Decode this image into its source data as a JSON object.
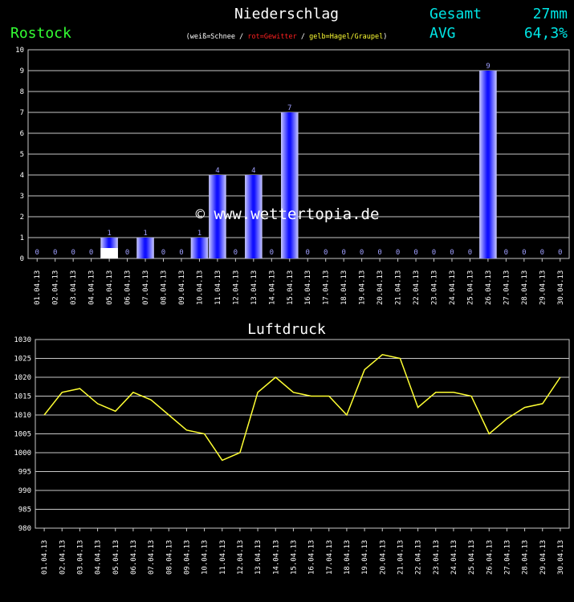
{
  "header": {
    "title": "Niederschlag",
    "location": "Rostock",
    "gesamt_label": "Gesamt",
    "gesamt_value": "27mm",
    "avg_label": "AVG",
    "avg_value": "64,3%",
    "legend": {
      "open": "(",
      "snow": "weiß=Schnee",
      "sep1": " / ",
      "thunder": "rot=Gewitter",
      "sep2": " / ",
      "hail": "gelb=Hagel/Graupel",
      "close": ")"
    },
    "watermark": "© www.wettertopia.de"
  },
  "colors": {
    "title": "#ffffff",
    "location": "#33ff33",
    "stats": "#00e5e5",
    "bar": "#2222ff",
    "snow": "#ffffff",
    "thunder": "#ff2020",
    "hail": "#ffff33",
    "line": "#ffff33",
    "grid": "#c8c8c8",
    "tick_label": "#ffffff",
    "value_label": "#a0a0ff"
  },
  "chart_data": [
    {
      "type": "bar",
      "title": "Niederschlag",
      "categories": [
        "01.04.13",
        "02.04.13",
        "03.04.13",
        "04.04.13",
        "05.04.13",
        "06.04.13",
        "07.04.13",
        "08.04.13",
        "09.04.13",
        "10.04.13",
        "11.04.13",
        "12.04.13",
        "13.04.13",
        "14.04.13",
        "15.04.13",
        "16.04.13",
        "17.04.13",
        "18.04.13",
        "19.04.13",
        "20.04.13",
        "21.04.13",
        "22.04.13",
        "23.04.13",
        "24.04.13",
        "25.04.13",
        "26.04.13",
        "27.04.13",
        "28.04.13",
        "29.04.13",
        "30.04.13"
      ],
      "values": [
        0,
        0,
        0,
        0,
        1,
        0,
        1,
        0,
        0,
        1,
        4,
        0,
        4,
        0,
        7,
        0,
        0,
        0,
        0,
        0,
        0,
        0,
        0,
        0,
        0,
        9,
        0,
        0,
        0,
        0
      ],
      "snow_values": [
        0,
        0,
        0,
        0,
        0.5,
        0,
        0,
        0,
        0,
        0,
        0,
        0,
        0,
        0,
        0,
        0,
        0,
        0,
        0,
        0,
        0,
        0,
        0,
        0,
        0,
        0,
        0,
        0,
        0,
        0
      ],
      "value_labels": [
        "0",
        "0",
        "0",
        "0",
        "1",
        "0",
        "1",
        "0",
        "0",
        "1",
        "4",
        "0",
        "4",
        "0",
        "7",
        "0",
        "0",
        "0",
        "0",
        "0",
        "0",
        "0",
        "0",
        "0",
        "0",
        "9",
        "0",
        "0",
        "0",
        "0"
      ],
      "ylim": [
        0,
        10
      ],
      "yticks": [
        "0",
        "1",
        "2",
        "3",
        "4",
        "5",
        "6",
        "7",
        "8",
        "9",
        "10"
      ],
      "grid": true
    },
    {
      "type": "line",
      "title": "Luftdruck",
      "categories": [
        "01.04.13",
        "02.04.13",
        "03.04.13",
        "04.04.13",
        "05.04.13",
        "06.04.13",
        "07.04.13",
        "08.04.13",
        "09.04.13",
        "10.04.13",
        "11.04.13",
        "12.04.13",
        "13.04.13",
        "14.04.13",
        "15.04.13",
        "16.04.13",
        "17.04.13",
        "18.04.13",
        "19.04.13",
        "20.04.13",
        "21.04.13",
        "22.04.13",
        "23.04.13",
        "24.04.13",
        "25.04.13",
        "26.04.13",
        "27.04.13",
        "28.04.13",
        "29.04.13",
        "30.04.13"
      ],
      "values": [
        1010,
        1016,
        1017,
        1013,
        1011,
        1016,
        1014,
        1010,
        1006,
        1005,
        998,
        1000,
        1016,
        1020,
        1016,
        1015,
        1015,
        1010,
        1022,
        1026,
        1025,
        1012,
        1016,
        1016,
        1015,
        1005,
        1009,
        1012,
        1013,
        1020
      ],
      "ylim": [
        980,
        1030
      ],
      "yticks": [
        "980",
        "985",
        "990",
        "995",
        "1000",
        "1005",
        "1010",
        "1015",
        "1020",
        "1025",
        "1030"
      ],
      "grid": true
    }
  ]
}
